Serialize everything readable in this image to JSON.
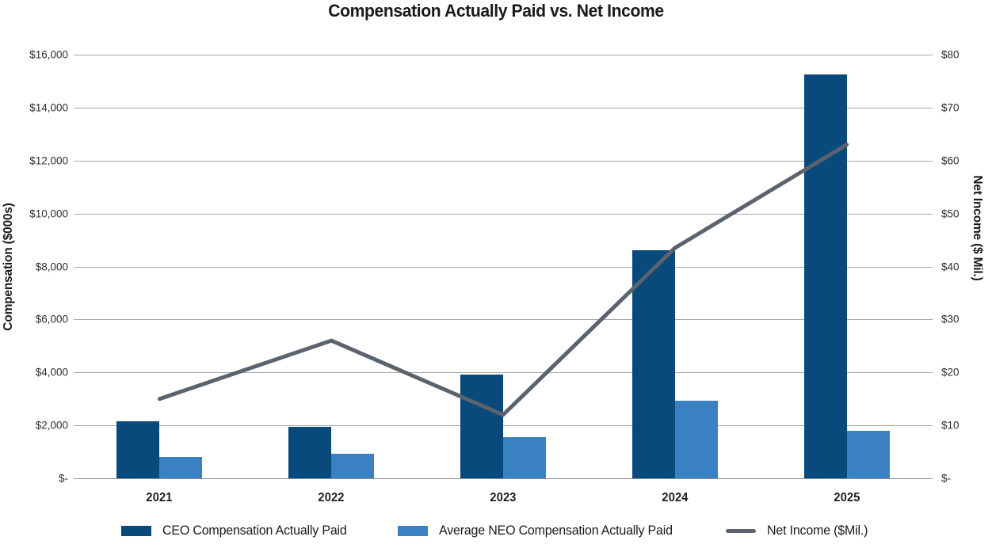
{
  "chart": {
    "title": "Compensation Actually Paid vs. Net Income",
    "left_axis": {
      "title": "Compensation ($000s)",
      "ticks_top_to_bottom": [
        "$16,000",
        "$14,000",
        "$12,000",
        "$10,000",
        "$8,000",
        "$6,000",
        "$4,000",
        "$2,000",
        "$-"
      ]
    },
    "right_axis": {
      "title": "Net Income ($ Mil.)",
      "ticks_top_to_bottom": [
        "$80",
        "$70",
        "$60",
        "$50",
        "$40",
        "$30",
        "$20",
        "$10",
        "$-"
      ]
    },
    "colors": {
      "ceo_bar": "#084a7b",
      "neo_bar": "#3a81c3",
      "net_income_line": "#5b636d",
      "gridline": "#a7a7a7",
      "text": "#1a1a1a"
    }
  },
  "chart_data": {
    "type": "bar",
    "subtype": "grouped bars with secondary-axis line overlay",
    "title": "Compensation Actually Paid vs. Net Income",
    "categories": [
      "2021",
      "2022",
      "2023",
      "2024",
      "2025"
    ],
    "series": [
      {
        "name": "CEO Compensation Actually Paid",
        "legend_label": "CEO Compensation Actually Paid",
        "type": "bar",
        "axis": "left",
        "color": "#084a7b",
        "values": [
          2150,
          1930,
          3920,
          8600,
          15250
        ]
      },
      {
        "name": "Average NEO Compensation Actually Paid",
        "legend_label": "Average NEO Compensation Actually Paid",
        "type": "bar",
        "axis": "left",
        "color": "#3a81c3",
        "values": [
          820,
          930,
          1550,
          2920,
          1790
        ]
      },
      {
        "name": "Net Income ($Mil.)",
        "legend_label": "Net Income ($Mil.)",
        "type": "line",
        "axis": "right",
        "color": "#5b636d",
        "values": [
          15,
          26,
          12,
          43.5,
          63
        ]
      }
    ],
    "xlabel": "",
    "ylabel_left": "Compensation ($000s)",
    "ylabel_right": "Net Income ($ Mil.)",
    "ylim_left": [
      0,
      16000
    ],
    "ylim_right": [
      0,
      80
    ],
    "ytick_step_left": 2000,
    "ytick_step_right": 10,
    "grid": true,
    "legend_position": "bottom"
  }
}
